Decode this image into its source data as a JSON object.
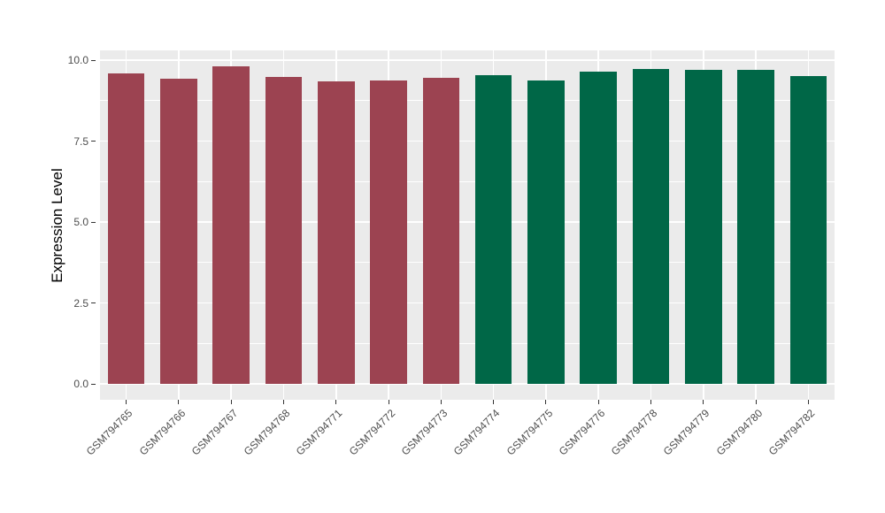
{
  "chart_data": {
    "type": "bar",
    "title": "",
    "xlabel": "",
    "ylabel": "Expression Level",
    "categories": [
      "GSM794765",
      "GSM794766",
      "GSM794767",
      "GSM794768",
      "GSM794771",
      "GSM794772",
      "GSM794773",
      "GSM794774",
      "GSM794775",
      "GSM794776",
      "GSM794778",
      "GSM794779",
      "GSM794780",
      "GSM794782"
    ],
    "values": [
      9.59,
      9.42,
      9.81,
      9.48,
      9.34,
      9.37,
      9.45,
      9.54,
      9.37,
      9.65,
      9.73,
      9.71,
      9.69,
      9.51
    ],
    "bar_colors": [
      "#9C4351",
      "#9C4351",
      "#9C4351",
      "#9C4351",
      "#9C4351",
      "#9C4351",
      "#9C4351",
      "#006747",
      "#006747",
      "#006747",
      "#006747",
      "#006747",
      "#006747",
      "#006747"
    ],
    "group_colors": {
      "left_group": "#9C4351",
      "right_group": "#006747"
    },
    "y_ticks": [
      "0.0",
      "2.5",
      "5.0",
      "7.5",
      "10.0"
    ],
    "y_tick_values": [
      0,
      2.5,
      5,
      7.5,
      10
    ],
    "y_minor_values": [
      1.25,
      3.75,
      6.25,
      8.75
    ],
    "ylim": [
      -0.49,
      10.3
    ],
    "grid": true,
    "legend": "none",
    "panel_background": "#EBEBEB",
    "grid_color": "#FFFFFF",
    "axis_text_color": "#4D4D4D",
    "tick_mark_color": "#333333"
  }
}
